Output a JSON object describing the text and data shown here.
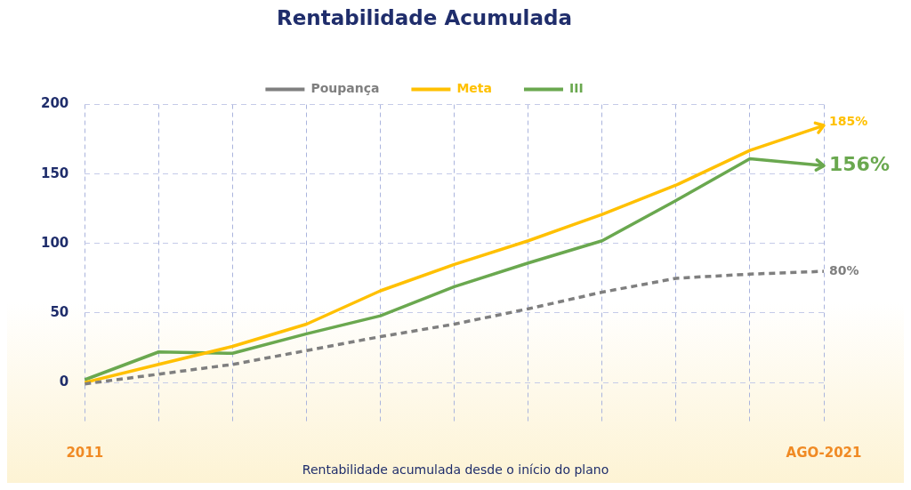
{
  "chart_data": {
    "type": "line",
    "title": "Rentabilidade Acumulada",
    "xlabel": "Rentabilidade acumulada desde o início do plano",
    "categories": [
      "2011",
      null,
      null,
      null,
      null,
      null,
      null,
      null,
      null,
      null,
      "AGO-2021"
    ],
    "series": [
      {
        "name": "Poupança",
        "color": "#7f7f7f",
        "line_style": "dashed",
        "values": [
          -1,
          6,
          13,
          23,
          33,
          42,
          53,
          65,
          75,
          78,
          80
        ],
        "value_labels": [
          null,
          null,
          null,
          null,
          null,
          null,
          null,
          null,
          null,
          null,
          "80%"
        ]
      },
      {
        "name": "Meta",
        "color": "#ffc000",
        "line_style": "solid",
        "values": [
          0,
          13,
          26,
          42,
          66,
          85,
          102,
          121,
          142,
          167,
          185
        ],
        "value_labels": [
          null,
          null,
          null,
          null,
          null,
          null,
          null,
          null,
          null,
          null,
          "185%"
        ]
      },
      {
        "name": "III",
        "color": "#6aa84f",
        "line_style": "solid",
        "values": [
          2,
          22,
          21,
          35,
          48,
          69,
          86,
          102,
          131,
          161,
          156
        ],
        "value_labels": [
          null,
          null,
          null,
          null,
          null,
          null,
          null,
          null,
          null,
          null,
          "156%"
        ]
      }
    ],
    "ylim": [
      -30,
      200
    ],
    "yticks": [
      0,
      50,
      100,
      150,
      200
    ],
    "grid": true,
    "legend": "top",
    "marker": "none"
  }
}
